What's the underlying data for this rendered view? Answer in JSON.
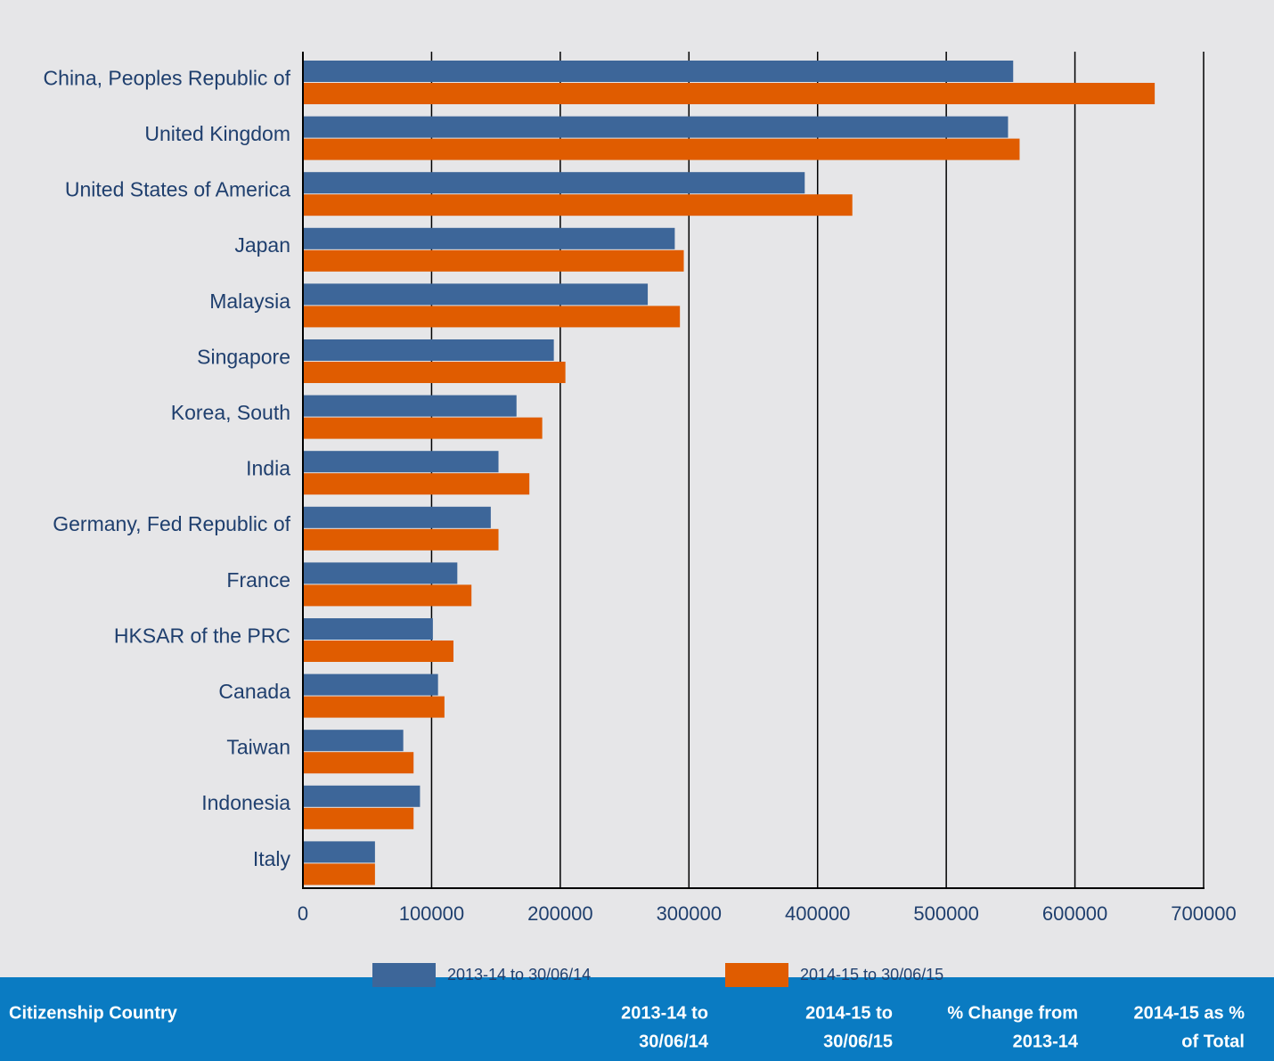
{
  "chart_data": {
    "type": "bar",
    "orientation": "horizontal",
    "categories": [
      "China, Peoples Republic of",
      "United Kingdom",
      "United States of America",
      "Japan",
      "Malaysia",
      "Singapore",
      "Korea, South",
      "India",
      "Germany, Fed Republic of",
      "France",
      "HKSAR of the PRC",
      "Canada",
      "Taiwan",
      "Indonesia",
      "Italy"
    ],
    "series": [
      {
        "name": "2013-14 to 30/06/14",
        "color": "#3d6699",
        "values": [
          552000,
          548000,
          390000,
          289000,
          268000,
          195000,
          166000,
          152000,
          146000,
          120000,
          101000,
          105000,
          78000,
          91000,
          56000
        ]
      },
      {
        "name": "2014-15 to 30/06/15",
        "color": "#e05c00",
        "values": [
          662000,
          557000,
          427000,
          296000,
          293000,
          204000,
          186000,
          176000,
          152000,
          131000,
          117000,
          110000,
          86000,
          86000,
          56000
        ]
      }
    ],
    "xlim": [
      0,
      700000
    ],
    "xticks": [
      0,
      100000,
      200000,
      300000,
      400000,
      500000,
      600000,
      700000
    ],
    "grid": true
  },
  "table": {
    "headers": [
      [
        "Citizenship Country"
      ],
      [
        "2013-14 to",
        "30/06/14"
      ],
      [
        "2014-15 to",
        "30/06/15"
      ],
      [
        "% Change from",
        "2013-14"
      ],
      [
        "2014-15 as %",
        "of Total"
      ]
    ]
  }
}
